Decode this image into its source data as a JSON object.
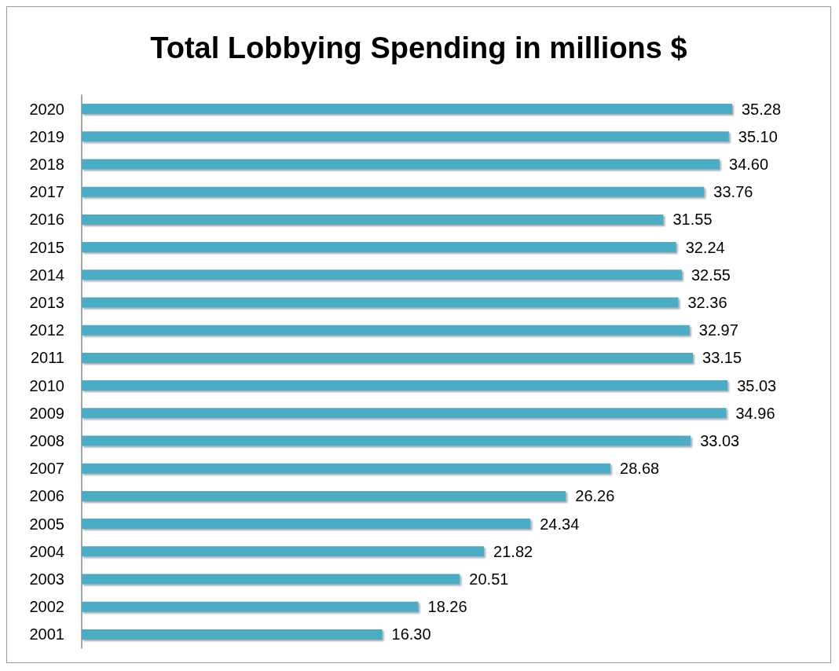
{
  "chart_data": {
    "type": "bar",
    "title": "Total Lobbying Spending in millions $",
    "orientation": "horizontal",
    "categories": [
      "2020",
      "2019",
      "2018",
      "2017",
      "2016",
      "2015",
      "2014",
      "2013",
      "2012",
      "2011",
      "2010",
      "2009",
      "2008",
      "2007",
      "2006",
      "2005",
      "2004",
      "2003",
      "2002",
      "2001"
    ],
    "values": [
      35.28,
      35.1,
      34.6,
      33.76,
      31.55,
      32.24,
      32.55,
      32.36,
      32.97,
      33.15,
      35.03,
      34.96,
      33.03,
      28.68,
      26.26,
      24.34,
      21.82,
      20.51,
      18.26,
      16.3
    ],
    "value_labels": [
      "35.28",
      "35.10",
      "34.60",
      "33.76",
      "31.55",
      "32.24",
      "32.55",
      "32.36",
      "32.97",
      "33.15",
      "35.03",
      "34.96",
      "33.03",
      "28.68",
      "26.26",
      "24.34",
      "21.82",
      "20.51",
      "18.26",
      "16.30"
    ],
    "color": "#4bacc6"
  }
}
